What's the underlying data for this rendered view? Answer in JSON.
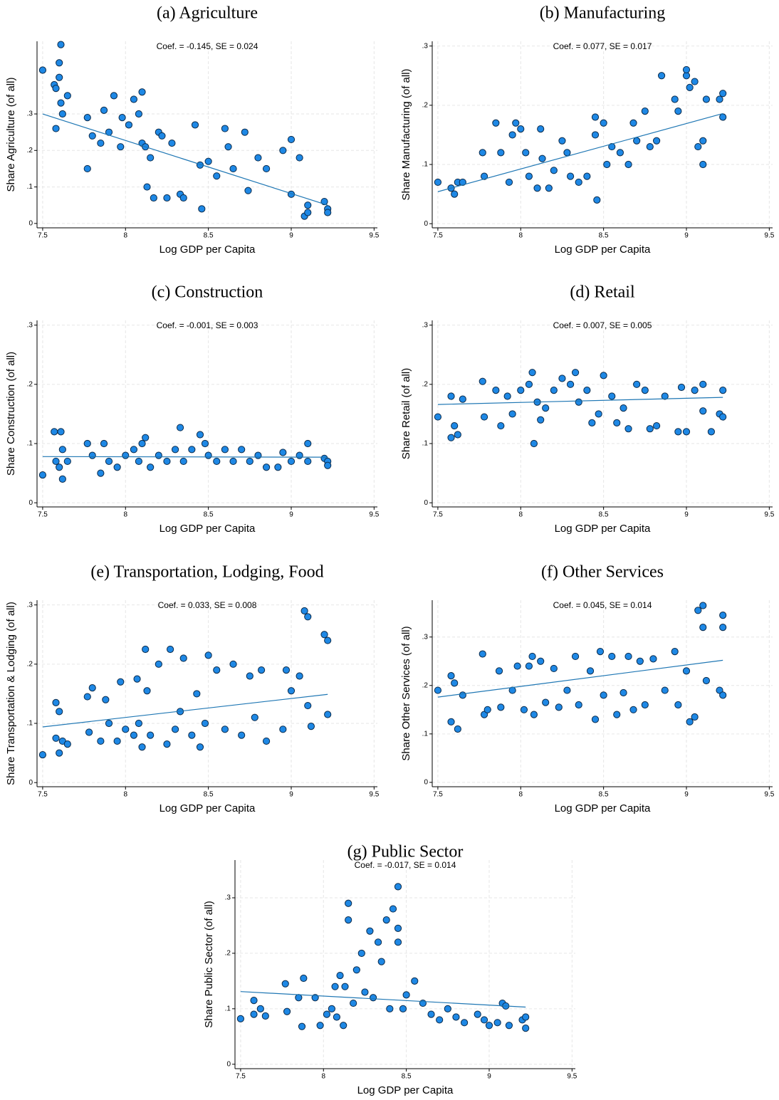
{
  "chart_data": [
    {
      "type": "scatter",
      "title": "(a) Agriculture",
      "annotation": "Coef. = -0.145, SE =  0.024",
      "xlabel": "Log GDP per Capita",
      "ylabel": "Share Agriculture (of all)",
      "color": "#1e88e5",
      "grid": true,
      "xlim": [
        7.466,
        9.52
      ],
      "ylim": [
        -0.012,
        0.499
      ],
      "xticks": [
        7.5,
        8,
        8.5,
        9,
        9.5
      ],
      "yticks": [
        0,
        {
          "value": 0.1,
          "label": ".1"
        },
        {
          "value": 0.2,
          "label": ".2"
        },
        {
          "value": 0.3,
          "label": ".3"
        }
      ],
      "x": [
        7.5,
        7.57,
        7.58,
        7.6,
        7.6,
        7.61,
        7.61,
        7.62,
        7.58,
        7.65,
        7.77,
        7.77,
        7.8,
        7.85,
        7.87,
        7.9,
        7.93,
        7.97,
        7.98,
        8.02,
        8.05,
        8.08,
        8.1,
        8.1,
        8.12,
        8.13,
        8.15,
        8.17,
        8.2,
        8.22,
        8.25,
        8.28,
        8.33,
        8.35,
        8.42,
        8.45,
        8.46,
        8.5,
        8.55,
        8.6,
        8.62,
        8.65,
        8.72,
        8.74,
        8.8,
        8.85,
        8.95,
        9.0,
        9.0,
        9.05,
        9.08,
        9.1,
        9.1,
        9.2,
        9.22,
        9.22
      ],
      "y": [
        0.42,
        0.38,
        0.37,
        0.4,
        0.44,
        0.49,
        0.33,
        0.3,
        0.26,
        0.35,
        0.29,
        0.15,
        0.24,
        0.22,
        0.31,
        0.25,
        0.35,
        0.21,
        0.29,
        0.27,
        0.34,
        0.3,
        0.36,
        0.22,
        0.21,
        0.1,
        0.18,
        0.07,
        0.25,
        0.24,
        0.07,
        0.22,
        0.08,
        0.07,
        0.27,
        0.16,
        0.04,
        0.17,
        0.13,
        0.26,
        0.21,
        0.15,
        0.25,
        0.09,
        0.18,
        0.15,
        0.2,
        0.23,
        0.08,
        0.18,
        0.02,
        0.05,
        0.03,
        0.06,
        0.04,
        0.03
      ],
      "fit": {
        "color": "#1f77b4",
        "x": [
          7.5,
          9.22
        ],
        "y": [
          0.3,
          0.05
        ]
      }
    },
    {
      "type": "scatter",
      "title": "(b) Manufacturing",
      "annotation": "Coef. =  0.077, SE =  0.017",
      "xlabel": "Log GDP per Capita",
      "ylabel": "Share Manufacturing (of all)",
      "color": "#1e88e5",
      "grid": true,
      "xlim": [
        7.466,
        9.52
      ],
      "ylim": [
        -0.007,
        0.308
      ],
      "xticks": [
        7.5,
        8,
        8.5,
        9,
        9.5
      ],
      "yticks": [
        0,
        {
          "value": 0.1,
          "label": ".1"
        },
        {
          "value": 0.2,
          "label": ".2"
        },
        {
          "value": 0.3,
          "label": ".3"
        }
      ],
      "x": [
        7.5,
        7.58,
        7.6,
        7.62,
        7.65,
        7.77,
        7.78,
        7.85,
        7.88,
        7.93,
        7.95,
        7.97,
        8.0,
        8.03,
        8.05,
        8.1,
        8.12,
        8.13,
        8.17,
        8.2,
        8.25,
        8.28,
        8.3,
        8.35,
        8.4,
        8.45,
        8.45,
        8.46,
        8.5,
        8.52,
        8.55,
        8.6,
        8.65,
        8.68,
        8.7,
        8.75,
        8.78,
        8.82,
        8.85,
        8.93,
        8.95,
        9.0,
        9.0,
        9.02,
        9.05,
        9.07,
        9.1,
        9.1,
        9.12,
        9.2,
        9.22,
        9.22
      ],
      "y": [
        0.07,
        0.06,
        0.05,
        0.07,
        0.07,
        0.12,
        0.08,
        0.17,
        0.12,
        0.07,
        0.15,
        0.17,
        0.16,
        0.12,
        0.08,
        0.06,
        0.16,
        0.11,
        0.06,
        0.09,
        0.14,
        0.12,
        0.08,
        0.07,
        0.08,
        0.15,
        0.18,
        0.04,
        0.17,
        0.1,
        0.13,
        0.12,
        0.1,
        0.17,
        0.14,
        0.19,
        0.13,
        0.14,
        0.25,
        0.21,
        0.19,
        0.25,
        0.26,
        0.23,
        0.24,
        0.13,
        0.1,
        0.14,
        0.21,
        0.21,
        0.22,
        0.18
      ],
      "fit": {
        "color": "#1f77b4",
        "x": [
          7.5,
          9.22
        ],
        "y": [
          0.054,
          0.186
        ]
      }
    },
    {
      "type": "scatter",
      "title": "(c) Construction",
      "annotation": "Coef. = -0.001, SE =  0.003",
      "xlabel": "Log GDP per Capita",
      "ylabel": "Share Construction (of all)",
      "color": "#1e88e5",
      "grid": true,
      "xlim": [
        7.466,
        9.52
      ],
      "ylim": [
        -0.007,
        0.308
      ],
      "xticks": [
        7.5,
        8,
        8.5,
        9,
        9.5
      ],
      "yticks": [
        0,
        {
          "value": 0.1,
          "label": ".1"
        },
        {
          "value": 0.2,
          "label": ".2"
        },
        {
          "value": 0.3,
          "label": ".3"
        }
      ],
      "x": [
        7.5,
        7.57,
        7.58,
        7.6,
        7.61,
        7.62,
        7.62,
        7.65,
        7.77,
        7.8,
        7.85,
        7.87,
        7.9,
        7.95,
        8.0,
        8.05,
        8.08,
        8.1,
        8.12,
        8.15,
        8.2,
        8.25,
        8.3,
        8.33,
        8.35,
        8.4,
        8.45,
        8.48,
        8.5,
        8.55,
        8.6,
        8.65,
        8.7,
        8.75,
        8.8,
        8.85,
        8.92,
        8.95,
        9.0,
        9.05,
        9.1,
        9.1,
        9.2,
        9.22,
        9.22
      ],
      "y": [
        0.047,
        0.12,
        0.07,
        0.06,
        0.12,
        0.04,
        0.09,
        0.07,
        0.1,
        0.08,
        0.05,
        0.1,
        0.07,
        0.06,
        0.08,
        0.09,
        0.07,
        0.1,
        0.11,
        0.06,
        0.08,
        0.07,
        0.09,
        0.127,
        0.07,
        0.09,
        0.115,
        0.1,
        0.08,
        0.07,
        0.09,
        0.07,
        0.09,
        0.07,
        0.08,
        0.06,
        0.06,
        0.085,
        0.07,
        0.08,
        0.1,
        0.07,
        0.075,
        0.07,
        0.063
      ],
      "fit": {
        "color": "#1f77b4",
        "x": [
          7.5,
          9.22
        ],
        "y": [
          0.078,
          0.077
        ]
      }
    },
    {
      "type": "scatter",
      "title": "(d) Retail",
      "annotation": "Coef. =  0.007, SE =  0.005",
      "xlabel": "Log GDP per Capita",
      "ylabel": "Share Retail (of all)",
      "color": "#1e88e5",
      "grid": true,
      "xlim": [
        7.466,
        9.52
      ],
      "ylim": [
        -0.007,
        0.308
      ],
      "xticks": [
        7.5,
        8,
        8.5,
        9,
        9.5
      ],
      "yticks": [
        0,
        {
          "value": 0.1,
          "label": ".1"
        },
        {
          "value": 0.2,
          "label": ".2"
        },
        {
          "value": 0.3,
          "label": ".3"
        }
      ],
      "x": [
        7.5,
        7.58,
        7.58,
        7.6,
        7.62,
        7.65,
        7.77,
        7.78,
        7.85,
        7.88,
        7.92,
        7.95,
        8.0,
        8.05,
        8.07,
        8.08,
        8.1,
        8.12,
        8.15,
        8.2,
        8.25,
        8.3,
        8.33,
        8.35,
        8.4,
        8.43,
        8.47,
        8.5,
        8.55,
        8.58,
        8.62,
        8.65,
        8.7,
        8.75,
        8.78,
        8.82,
        8.87,
        8.95,
        8.97,
        9.0,
        9.05,
        9.1,
        9.1,
        9.15,
        9.2,
        9.22,
        9.22
      ],
      "y": [
        0.145,
        0.18,
        0.11,
        0.13,
        0.115,
        0.175,
        0.205,
        0.145,
        0.19,
        0.13,
        0.18,
        0.15,
        0.19,
        0.2,
        0.22,
        0.1,
        0.17,
        0.14,
        0.16,
        0.19,
        0.21,
        0.2,
        0.22,
        0.17,
        0.19,
        0.135,
        0.15,
        0.215,
        0.18,
        0.135,
        0.16,
        0.125,
        0.2,
        0.19,
        0.125,
        0.13,
        0.18,
        0.12,
        0.195,
        0.12,
        0.19,
        0.2,
        0.155,
        0.12,
        0.15,
        0.19,
        0.145
      ],
      "fit": {
        "color": "#1f77b4",
        "x": [
          7.5,
          9.22
        ],
        "y": [
          0.166,
          0.178
        ]
      }
    },
    {
      "type": "scatter",
      "title": "(e) Transportation, Lodging, Food",
      "annotation": "Coef. =  0.033, SE =  0.008",
      "xlabel": "Log GDP per Capita",
      "ylabel": "Share Transportation & Lodging (of all)",
      "color": "#1e88e5",
      "grid": true,
      "xlim": [
        7.466,
        9.52
      ],
      "ylim": [
        -0.007,
        0.308
      ],
      "xticks": [
        7.5,
        8,
        8.5,
        9,
        9.5
      ],
      "yticks": [
        0,
        {
          "value": 0.1,
          "label": ".1"
        },
        {
          "value": 0.2,
          "label": ".2"
        },
        {
          "value": 0.3,
          "label": ".3"
        }
      ],
      "x": [
        7.5,
        7.58,
        7.58,
        7.6,
        7.6,
        7.62,
        7.65,
        7.77,
        7.78,
        7.8,
        7.85,
        7.88,
        7.9,
        7.95,
        7.97,
        8.0,
        8.05,
        8.07,
        8.08,
        8.1,
        8.12,
        8.13,
        8.15,
        8.2,
        8.25,
        8.27,
        8.3,
        8.33,
        8.35,
        8.4,
        8.43,
        8.45,
        8.48,
        8.5,
        8.55,
        8.6,
        8.65,
        8.7,
        8.75,
        8.78,
        8.82,
        8.85,
        8.95,
        8.97,
        9.0,
        9.05,
        9.08,
        9.1,
        9.1,
        9.12,
        9.2,
        9.22,
        9.22
      ],
      "y": [
        0.047,
        0.135,
        0.075,
        0.12,
        0.05,
        0.07,
        0.065,
        0.145,
        0.085,
        0.16,
        0.07,
        0.14,
        0.1,
        0.07,
        0.17,
        0.09,
        0.08,
        0.175,
        0.1,
        0.06,
        0.225,
        0.155,
        0.08,
        0.2,
        0.065,
        0.225,
        0.09,
        0.12,
        0.21,
        0.08,
        0.15,
        0.06,
        0.1,
        0.215,
        0.19,
        0.09,
        0.2,
        0.08,
        0.18,
        0.11,
        0.19,
        0.07,
        0.09,
        0.19,
        0.155,
        0.18,
        0.29,
        0.28,
        0.13,
        0.095,
        0.25,
        0.24,
        0.115
      ],
      "fit": {
        "color": "#1f77b4",
        "x": [
          7.5,
          9.22
        ],
        "y": [
          0.094,
          0.149
        ]
      }
    },
    {
      "type": "scatter",
      "title": "(f) Other Services",
      "annotation": "Coef. =  0.045, SE =  0.014",
      "xlabel": "Log GDP per Capita",
      "ylabel": "Share Other Services (of all)",
      "color": "#1e88e5",
      "grid": true,
      "xlim": [
        7.466,
        9.52
      ],
      "ylim": [
        -0.009,
        0.376
      ],
      "xticks": [
        7.5,
        8,
        8.5,
        9,
        9.5
      ],
      "yticks": [
        0,
        {
          "value": 0.1,
          "label": ".1"
        },
        {
          "value": 0.2,
          "label": ".2"
        },
        {
          "value": 0.3,
          "label": ".3"
        }
      ],
      "x": [
        7.5,
        7.58,
        7.58,
        7.6,
        7.62,
        7.65,
        7.77,
        7.78,
        7.8,
        7.87,
        7.88,
        7.95,
        7.98,
        8.02,
        8.05,
        8.07,
        8.08,
        8.12,
        8.15,
        8.2,
        8.23,
        8.28,
        8.33,
        8.35,
        8.42,
        8.45,
        8.48,
        8.5,
        8.55,
        8.58,
        8.62,
        8.65,
        8.68,
        8.72,
        8.75,
        8.8,
        8.87,
        8.93,
        8.95,
        9.0,
        9.02,
        9.05,
        9.07,
        9.1,
        9.1,
        9.12,
        9.2,
        9.22,
        9.22,
        9.22
      ],
      "y": [
        0.19,
        0.22,
        0.125,
        0.205,
        0.11,
        0.18,
        0.265,
        0.14,
        0.15,
        0.23,
        0.155,
        0.19,
        0.24,
        0.15,
        0.24,
        0.26,
        0.14,
        0.25,
        0.165,
        0.235,
        0.155,
        0.19,
        0.26,
        0.16,
        0.23,
        0.13,
        0.27,
        0.18,
        0.26,
        0.14,
        0.185,
        0.26,
        0.15,
        0.25,
        0.16,
        0.255,
        0.19,
        0.27,
        0.16,
        0.23,
        0.125,
        0.135,
        0.355,
        0.365,
        0.32,
        0.21,
        0.19,
        0.345,
        0.32,
        0.18
      ],
      "fit": {
        "color": "#1f77b4",
        "x": [
          7.5,
          9.22
        ],
        "y": [
          0.176,
          0.252
        ]
      }
    },
    {
      "type": "scatter",
      "title": "(g) Public Sector",
      "annotation": "Coef. = -0.017, SE =  0.014",
      "xlabel": "Log GDP per Capita",
      "ylabel": "Share Public Sector (of all)",
      "color": "#1e88e5",
      "grid": true,
      "xlim": [
        7.466,
        9.52
      ],
      "ylim": [
        -0.008,
        0.368
      ],
      "xticks": [
        7.5,
        8,
        8.5,
        9,
        9.5
      ],
      "yticks": [
        0,
        {
          "value": 0.1,
          "label": ".1"
        },
        {
          "value": 0.2,
          "label": ".2"
        },
        {
          "value": 0.3,
          "label": ".3"
        }
      ],
      "x": [
        7.5,
        7.58,
        7.58,
        7.62,
        7.65,
        7.77,
        7.78,
        7.85,
        7.87,
        7.88,
        7.95,
        7.98,
        8.02,
        8.05,
        8.07,
        8.08,
        8.1,
        8.12,
        8.13,
        8.15,
        8.15,
        8.18,
        8.2,
        8.23,
        8.25,
        8.28,
        8.3,
        8.33,
        8.35,
        8.38,
        8.4,
        8.42,
        8.45,
        8.45,
        8.45,
        8.48,
        8.5,
        8.55,
        8.6,
        8.65,
        8.7,
        8.75,
        8.8,
        8.85,
        8.93,
        8.97,
        9.0,
        9.05,
        9.08,
        9.1,
        9.12,
        9.2,
        9.22,
        9.22
      ],
      "y": [
        0.082,
        0.115,
        0.09,
        0.1,
        0.087,
        0.145,
        0.095,
        0.12,
        0.068,
        0.155,
        0.12,
        0.07,
        0.09,
        0.1,
        0.14,
        0.085,
        0.16,
        0.07,
        0.14,
        0.29,
        0.26,
        0.11,
        0.17,
        0.2,
        0.13,
        0.24,
        0.12,
        0.22,
        0.185,
        0.26,
        0.1,
        0.28,
        0.32,
        0.245,
        0.22,
        0.1,
        0.125,
        0.15,
        0.11,
        0.09,
        0.08,
        0.1,
        0.085,
        0.075,
        0.09,
        0.08,
        0.07,
        0.075,
        0.11,
        0.105,
        0.07,
        0.08,
        0.065,
        0.085
      ],
      "fit": {
        "color": "#1f77b4",
        "x": [
          7.5,
          9.22
        ],
        "y": [
          0.131,
          0.103
        ]
      }
    }
  ]
}
